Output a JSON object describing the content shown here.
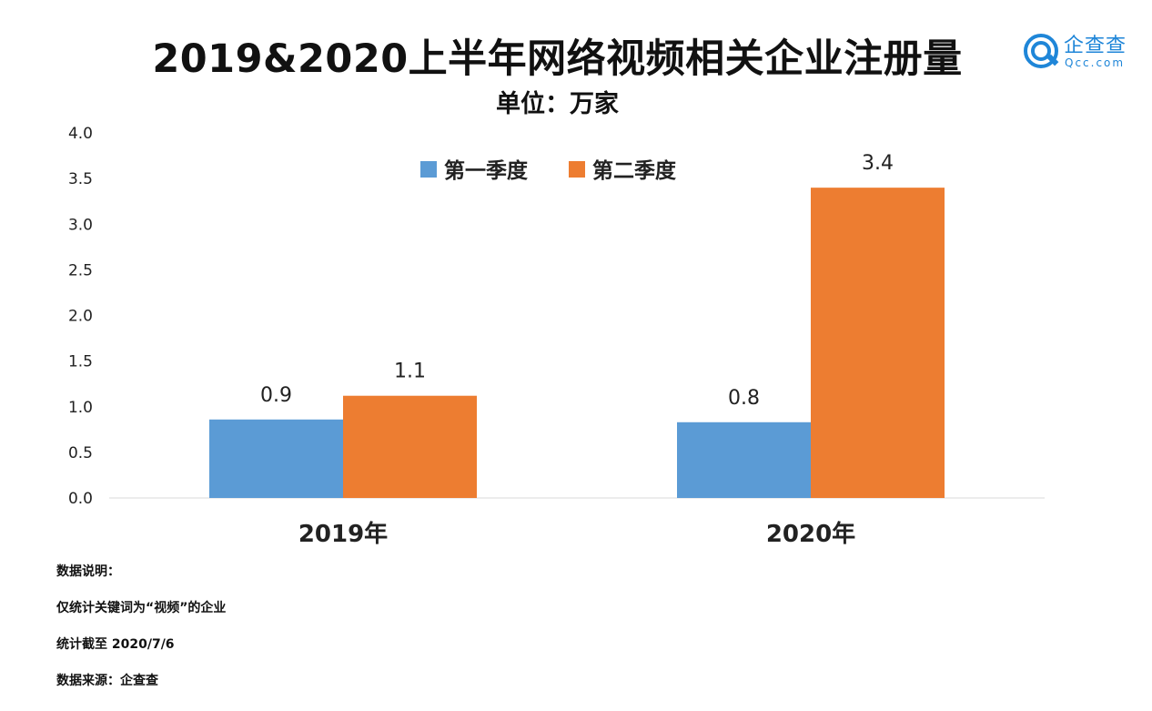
{
  "header": {
    "title": "2019&2020上半年网络视频相关企业注册量",
    "subtitle": "单位：万家"
  },
  "logo": {
    "name_cn": "企查查",
    "name_en": "Qcc.com",
    "icon": "qcc-logo-icon",
    "color": "#1f86d8"
  },
  "chart_data": {
    "type": "bar",
    "categories": [
      "2019年",
      "2020年"
    ],
    "series": [
      {
        "name": "第一季度",
        "color": "#5b9bd5",
        "values": [
          0.86,
          0.83
        ],
        "labels": [
          "0.9",
          "0.8"
        ]
      },
      {
        "name": "第二季度",
        "color": "#ed7d31",
        "values": [
          1.12,
          3.4
        ],
        "labels": [
          "1.1",
          "3.4"
        ]
      }
    ],
    "ylim": [
      0,
      4
    ],
    "yticks": [
      "0.0",
      "0.5",
      "1.0",
      "1.5",
      "2.0",
      "2.5",
      "3.0",
      "3.5",
      "4.0"
    ],
    "grid": false,
    "legend": "top-center"
  },
  "notes": [
    "数据说明：",
    "仅统计关键词为“视频”的企业",
    "统计截至 2020/7/6",
    "数据来源：企查查"
  ]
}
